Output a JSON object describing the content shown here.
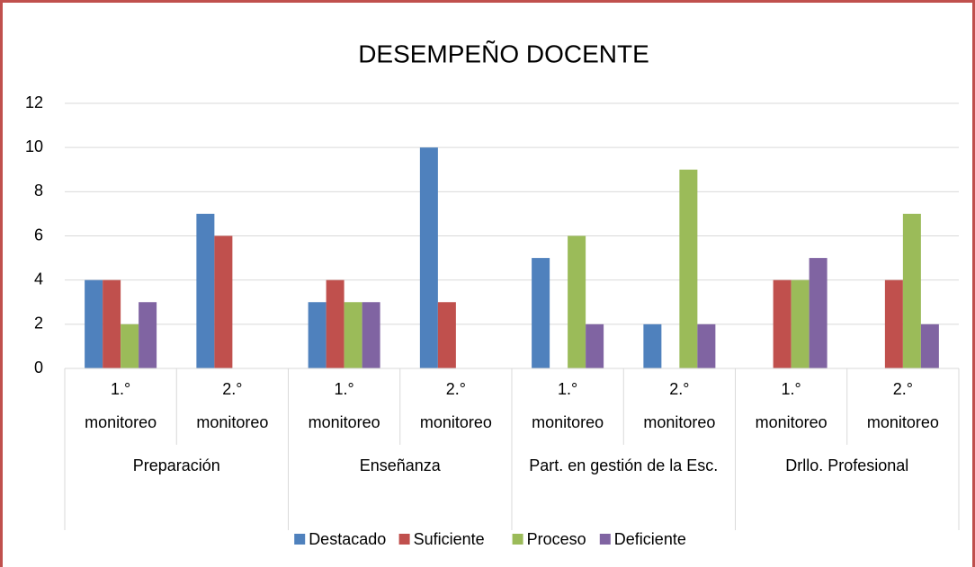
{
  "chart_data": {
    "type": "bar",
    "title": "DESEMPEÑO DOCENTE",
    "categories": [
      "1.° monitoreo",
      "2.° monitoreo",
      "1.° monitoreo",
      "2.° monitoreo",
      "1.° monitoreo",
      "2.° monitoreo",
      "1.° monitoreo",
      "2.° monitoreo"
    ],
    "groups": [
      "Preparación",
      "Enseñanza",
      "Part. en gestión de la Esc.",
      "Drllo. Profesional"
    ],
    "series": [
      {
        "name": "Destacado",
        "color": "#4f81bd",
        "values": [
          4,
          7,
          3,
          10,
          5,
          2,
          0,
          0
        ]
      },
      {
        "name": "Suficiente",
        "color": "#c0504d",
        "values": [
          4,
          6,
          4,
          3,
          0,
          0,
          4,
          4
        ]
      },
      {
        "name": "Proceso",
        "color": "#9bbb59",
        "values": [
          2,
          0,
          3,
          0,
          6,
          9,
          4,
          7
        ]
      },
      {
        "name": "Deficiente",
        "color": "#8064a2",
        "values": [
          3,
          0,
          3,
          0,
          2,
          2,
          5,
          2
        ]
      }
    ],
    "ylim": [
      0,
      12
    ],
    "yticks": [
      0,
      2,
      4,
      6,
      8,
      10,
      12
    ],
    "grid": true,
    "legend": "bottom"
  }
}
